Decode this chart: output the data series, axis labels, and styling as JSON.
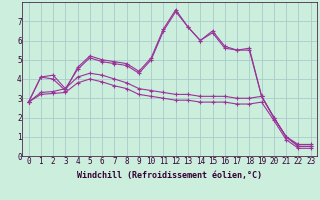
{
  "xlabel": "Windchill (Refroidissement éolien,°C)",
  "background_color": "#cceedd",
  "grid_color": "#aacccc",
  "line_color": "#993399",
  "xlim": [
    -0.5,
    23.5
  ],
  "ylim": [
    0,
    8
  ],
  "xticks": [
    0,
    1,
    2,
    3,
    4,
    5,
    6,
    7,
    8,
    9,
    10,
    11,
    12,
    13,
    14,
    15,
    16,
    17,
    18,
    19,
    20,
    21,
    22,
    23
  ],
  "yticks": [
    0,
    1,
    2,
    3,
    4,
    5,
    6,
    7
  ],
  "series": [
    [
      2.8,
      4.1,
      4.0,
      3.4,
      4.6,
      5.2,
      5.0,
      4.9,
      4.8,
      4.4,
      5.1,
      6.6,
      7.6,
      6.7,
      6.0,
      6.5,
      5.7,
      5.5,
      5.6,
      3.1,
      2.0,
      1.0,
      0.6,
      0.6
    ],
    [
      2.8,
      4.1,
      4.2,
      3.5,
      4.5,
      5.1,
      4.9,
      4.8,
      4.7,
      4.3,
      5.0,
      6.5,
      7.5,
      6.7,
      6.0,
      6.4,
      5.6,
      5.5,
      5.5,
      3.1,
      2.0,
      1.0,
      0.5,
      0.5
    ],
    [
      2.8,
      3.3,
      3.35,
      3.5,
      4.1,
      4.3,
      4.2,
      4.0,
      3.8,
      3.5,
      3.4,
      3.3,
      3.2,
      3.2,
      3.1,
      3.1,
      3.1,
      3.0,
      3.0,
      3.1,
      2.0,
      1.0,
      0.5,
      0.5
    ],
    [
      2.8,
      3.2,
      3.25,
      3.3,
      3.8,
      4.0,
      3.85,
      3.65,
      3.5,
      3.2,
      3.1,
      3.0,
      2.9,
      2.9,
      2.8,
      2.8,
      2.8,
      2.7,
      2.7,
      2.8,
      1.85,
      0.85,
      0.4,
      0.4
    ]
  ],
  "tick_fontsize": 5.5,
  "xlabel_fontsize": 6,
  "marker_size": 2.5,
  "line_width": 0.8
}
